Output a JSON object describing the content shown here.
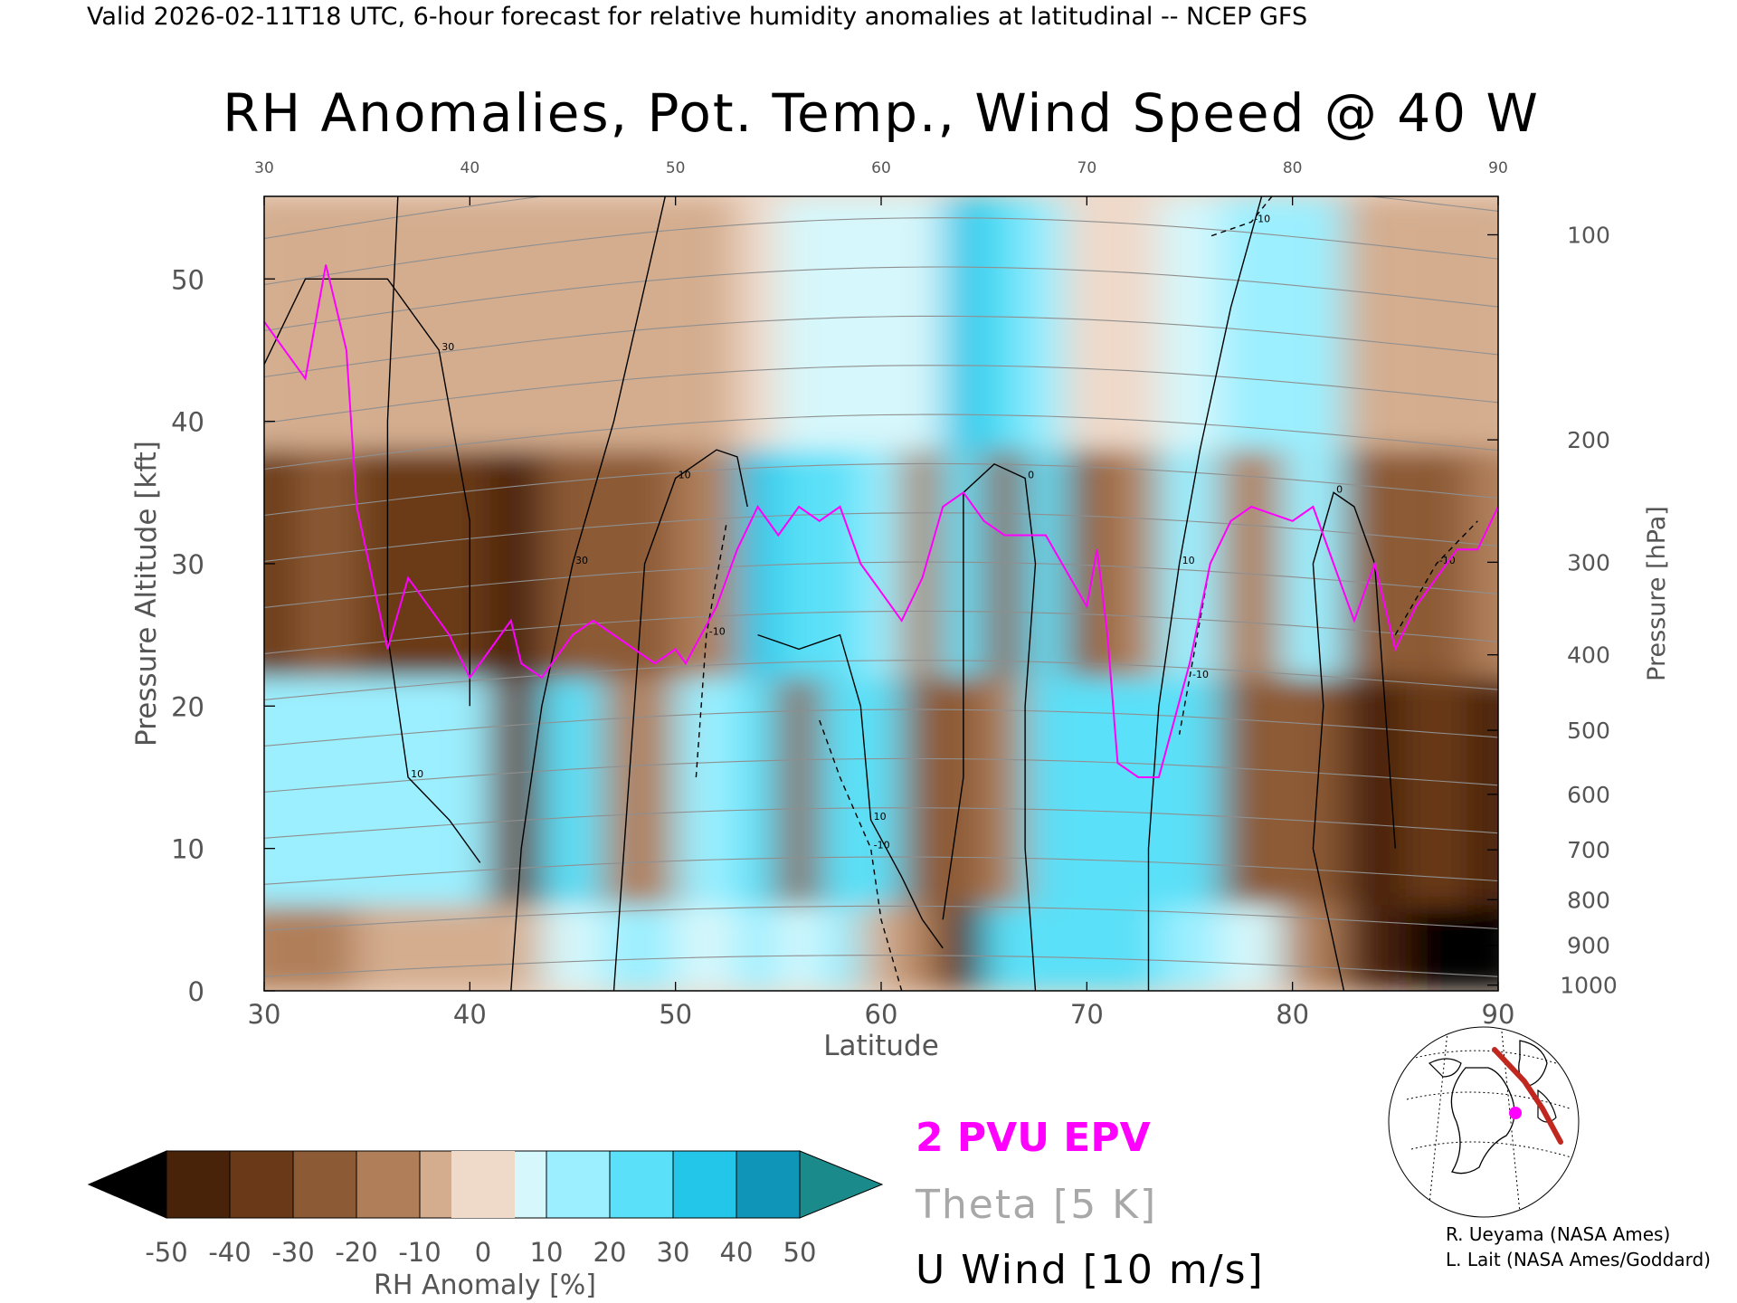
{
  "header_line": "Valid 2026-02-11T18 UTC, 6-hour forecast for relative humidity anomalies at latitudinal -- NCEP GFS",
  "chart_data": {
    "type": "heatmap",
    "title": "RH Anomalies, Pot. Temp., Wind Speed @ 40 W",
    "xlabel": "Latitude",
    "ylabel": "Pressure Altitude [kft]",
    "y2label": "Pressure [hPa]",
    "xlim": [
      30,
      90
    ],
    "ylim": [
      0,
      55.8
    ],
    "x_ticks": [
      30,
      40,
      50,
      60,
      70,
      80,
      90
    ],
    "y_ticks": [
      0,
      10,
      20,
      30,
      40,
      50
    ],
    "pressure_ticks": [
      {
        "hPa": "100",
        "kft": 53.1
      },
      {
        "hPa": "200",
        "kft": 38.7
      },
      {
        "hPa": "300",
        "kft": 30.1
      },
      {
        "hPa": "400",
        "kft": 23.6
      },
      {
        "hPa": "500",
        "kft": 18.3
      },
      {
        "hPa": "600",
        "kft": 13.8
      },
      {
        "hPa": "700",
        "kft": 9.9
      },
      {
        "hPa": "800",
        "kft": 6.4
      },
      {
        "hPa": "900",
        "kft": 3.2
      },
      {
        "hPa": "1000",
        "kft": 0.4
      }
    ],
    "colorbar": {
      "label": "RH Anomaly [%]",
      "ticks": [
        "-50",
        "-40",
        "-30",
        "-20",
        "-10",
        "0",
        "10",
        "20",
        "30",
        "40",
        "50"
      ],
      "colors": [
        "#482309",
        "#6a3a18",
        "#8c5a34",
        "#b07f5a",
        "#d4ad8f",
        "#efd9c9",
        "#d6f7fb",
        "#9befff",
        "#5ae0f8",
        "#23c6e8",
        "#0e95b8"
      ],
      "under_color": "#000000",
      "over_color": "#1b8a8a"
    },
    "rh_field_columns": [
      {
        "lat": 30,
        "upper": -8,
        "mid": -35,
        "low": 20,
        "sfc": -15
      },
      {
        "lat": 33,
        "upper": -8,
        "mid": -30,
        "low": 25,
        "sfc": -12
      },
      {
        "lat": 36,
        "upper": -8,
        "mid": -38,
        "low": 28,
        "sfc": -10
      },
      {
        "lat": 40,
        "upper": -6,
        "mid": -40,
        "low": 22,
        "sfc": -8
      },
      {
        "lat": 42,
        "upper": -6,
        "mid": -42,
        "low": -35,
        "sfc": -10
      },
      {
        "lat": 45,
        "upper": -5,
        "mid": -30,
        "low": 30,
        "sfc": 15
      },
      {
        "lat": 48,
        "upper": -5,
        "mid": -28,
        "low": -20,
        "sfc": 20
      },
      {
        "lat": 52,
        "upper": -4,
        "mid": -15,
        "low": 25,
        "sfc": 15
      },
      {
        "lat": 54,
        "upper": 8,
        "mid": 40,
        "low": 35,
        "sfc": 20
      },
      {
        "lat": 56,
        "upper": 10,
        "mid": 35,
        "low": -25,
        "sfc": 15
      },
      {
        "lat": 58,
        "upper": 12,
        "mid": 30,
        "low": 38,
        "sfc": 20
      },
      {
        "lat": 60,
        "upper": 15,
        "mid": 25,
        "low": 30,
        "sfc": -10
      },
      {
        "lat": 62,
        "upper": 18,
        "mid": -20,
        "low": -25,
        "sfc": -15
      },
      {
        "lat": 64,
        "upper": 40,
        "mid": 35,
        "low": -30,
        "sfc": -45
      },
      {
        "lat": 66,
        "upper": 30,
        "mid": -25,
        "low": -20,
        "sfc": 35
      },
      {
        "lat": 68,
        "upper": 25,
        "mid": 30,
        "low": 35,
        "sfc": 30
      },
      {
        "lat": 70,
        "upper": 5,
        "mid": -25,
        "low": 38,
        "sfc": 35
      },
      {
        "lat": 72,
        "upper": 8,
        "mid": -20,
        "low": 30,
        "sfc": 30
      },
      {
        "lat": 75,
        "upper": 15,
        "mid": 28,
        "low": 32,
        "sfc": 20
      },
      {
        "lat": 78,
        "upper": 25,
        "mid": -15,
        "low": -25,
        "sfc": 15
      },
      {
        "lat": 81,
        "upper": 28,
        "mid": 20,
        "low": -30,
        "sfc": -20
      },
      {
        "lat": 84,
        "upper": -8,
        "mid": -25,
        "low": -45,
        "sfc": -50
      },
      {
        "lat": 87,
        "upper": -8,
        "mid": -30,
        "low": -40,
        "sfc": -55
      },
      {
        "lat": 90,
        "upper": -6,
        "mid": -20,
        "low": -50,
        "sfc": -55
      }
    ],
    "theta_levels_K": [
      250,
      260,
      270,
      280,
      290,
      300,
      310,
      320,
      330,
      340,
      350,
      360,
      370,
      380,
      390,
      400,
      410,
      420
    ],
    "epv_2pvu_line": [
      {
        "lat": 30,
        "kft": 47
      },
      {
        "lat": 31,
        "kft": 45
      },
      {
        "lat": 32,
        "kft": 43
      },
      {
        "lat": 33,
        "kft": 51
      },
      {
        "lat": 34,
        "kft": 45
      },
      {
        "lat": 34.5,
        "kft": 34
      },
      {
        "lat": 36,
        "kft": 24
      },
      {
        "lat": 37,
        "kft": 29
      },
      {
        "lat": 38,
        "kft": 27
      },
      {
        "lat": 39,
        "kft": 25
      },
      {
        "lat": 40,
        "kft": 22
      },
      {
        "lat": 41,
        "kft": 24
      },
      {
        "lat": 42,
        "kft": 26
      },
      {
        "lat": 42.5,
        "kft": 23
      },
      {
        "lat": 43.5,
        "kft": 22
      },
      {
        "lat": 45,
        "kft": 25
      },
      {
        "lat": 46,
        "kft": 26
      },
      {
        "lat": 48,
        "kft": 24
      },
      {
        "lat": 49,
        "kft": 23
      },
      {
        "lat": 50,
        "kft": 24
      },
      {
        "lat": 50.5,
        "kft": 23
      },
      {
        "lat": 52,
        "kft": 27
      },
      {
        "lat": 53,
        "kft": 31
      },
      {
        "lat": 54,
        "kft": 34
      },
      {
        "lat": 55,
        "kft": 32
      },
      {
        "lat": 56,
        "kft": 34
      },
      {
        "lat": 57,
        "kft": 33
      },
      {
        "lat": 58,
        "kft": 34
      },
      {
        "lat": 59,
        "kft": 30
      },
      {
        "lat": 60,
        "kft": 28
      },
      {
        "lat": 61,
        "kft": 26
      },
      {
        "lat": 62,
        "kft": 29
      },
      {
        "lat": 63,
        "kft": 34
      },
      {
        "lat": 64,
        "kft": 35
      },
      {
        "lat": 65,
        "kft": 33
      },
      {
        "lat": 66,
        "kft": 32
      },
      {
        "lat": 68,
        "kft": 32
      },
      {
        "lat": 70,
        "kft": 27
      },
      {
        "lat": 70.5,
        "kft": 31
      },
      {
        "lat": 71,
        "kft": 25
      },
      {
        "lat": 71.5,
        "kft": 16
      },
      {
        "lat": 72.5,
        "kft": 15
      },
      {
        "lat": 73.5,
        "kft": 15
      },
      {
        "lat": 75,
        "kft": 23
      },
      {
        "lat": 76,
        "kft": 30
      },
      {
        "lat": 77,
        "kft": 33
      },
      {
        "lat": 78,
        "kft": 34
      },
      {
        "lat": 80,
        "kft": 33
      },
      {
        "lat": 81,
        "kft": 34
      },
      {
        "lat": 82,
        "kft": 30
      },
      {
        "lat": 83,
        "kft": 26
      },
      {
        "lat": 84,
        "kft": 30
      },
      {
        "lat": 85,
        "kft": 24
      },
      {
        "lat": 86,
        "kft": 27
      },
      {
        "lat": 87,
        "kft": 29
      },
      {
        "lat": 88,
        "kft": 31
      },
      {
        "lat": 89,
        "kft": 31
      },
      {
        "lat": 90,
        "kft": 34
      }
    ],
    "u_wind_contours_ms": [
      {
        "label": "0",
        "points": [
          [
            63,
            5
          ],
          [
            64,
            15
          ],
          [
            64,
            25
          ],
          [
            64,
            35
          ],
          [
            65.5,
            37
          ],
          [
            67,
            36
          ],
          [
            67.5,
            30
          ],
          [
            67,
            20
          ],
          [
            67,
            10
          ],
          [
            67.5,
            0
          ]
        ]
      },
      {
        "label": "10",
        "points": [
          [
            36.5,
            55.8
          ],
          [
            36,
            40
          ],
          [
            36,
            25
          ],
          [
            37,
            15
          ],
          [
            39,
            12
          ],
          [
            40.5,
            9
          ]
        ]
      },
      {
        "label": "10",
        "points": [
          [
            47,
            0
          ],
          [
            47.5,
            10
          ],
          [
            48,
            20
          ],
          [
            48.5,
            30
          ],
          [
            50,
            36
          ],
          [
            52,
            38
          ],
          [
            53,
            37.5
          ],
          [
            53.5,
            34
          ]
        ]
      },
      {
        "label": "10",
        "points": [
          [
            54,
            25
          ],
          [
            56,
            24
          ],
          [
            58,
            25
          ],
          [
            59,
            20
          ],
          [
            59.5,
            12
          ],
          [
            61,
            8
          ],
          [
            62,
            5
          ],
          [
            63,
            3
          ]
        ]
      },
      {
        "label": "10",
        "points": [
          [
            73,
            0
          ],
          [
            73,
            10
          ],
          [
            73.5,
            20
          ],
          [
            74.5,
            30
          ],
          [
            75.5,
            38
          ],
          [
            77,
            48
          ],
          [
            78.5,
            55.8
          ]
        ]
      },
      {
        "label": "0",
        "points": [
          [
            82.5,
            0
          ],
          [
            81,
            10
          ],
          [
            81.5,
            20
          ],
          [
            81,
            30
          ],
          [
            82,
            35
          ],
          [
            83,
            34
          ],
          [
            84,
            30
          ],
          [
            84.5,
            20
          ],
          [
            85,
            10
          ]
        ]
      },
      {
        "label": "30",
        "points": [
          [
            42,
            0
          ],
          [
            42.5,
            10
          ],
          [
            43.5,
            20
          ],
          [
            45,
            30
          ],
          [
            47,
            40
          ],
          [
            49.5,
            55.8
          ]
        ]
      },
      {
        "label": "30",
        "points": [
          [
            30,
            44
          ],
          [
            32,
            50
          ],
          [
            36,
            50
          ],
          [
            38.5,
            45
          ],
          [
            40,
            33
          ],
          [
            40,
            20
          ]
        ]
      },
      {
        "label": "-10",
        "points": [
          [
            51,
            15
          ],
          [
            51.5,
            25
          ],
          [
            52.5,
            33
          ]
        ]
      },
      {
        "label": "-10",
        "points": [
          [
            57,
            19
          ],
          [
            58,
            15
          ],
          [
            59.5,
            10
          ],
          [
            60,
            5
          ],
          [
            61,
            0
          ]
        ]
      },
      {
        "label": "-10",
        "points": [
          [
            76,
            30
          ],
          [
            75,
            22
          ],
          [
            74.5,
            18
          ]
        ]
      },
      {
        "label": "-10",
        "points": [
          [
            85,
            25
          ],
          [
            87,
            30
          ],
          [
            89,
            33
          ]
        ]
      },
      {
        "label": "-10",
        "points": [
          [
            79,
            55.8
          ],
          [
            78,
            54
          ],
          [
            76,
            53
          ]
        ]
      }
    ]
  },
  "legend": {
    "epv": "2 PVU EPV",
    "theta": "Theta [5 K]",
    "uwind": "U Wind [10 m/s]"
  },
  "credits": {
    "line1": "R. Ueyama (NASA Ames)",
    "line2": "L. Lait (NASA Ames/Goddard)"
  }
}
